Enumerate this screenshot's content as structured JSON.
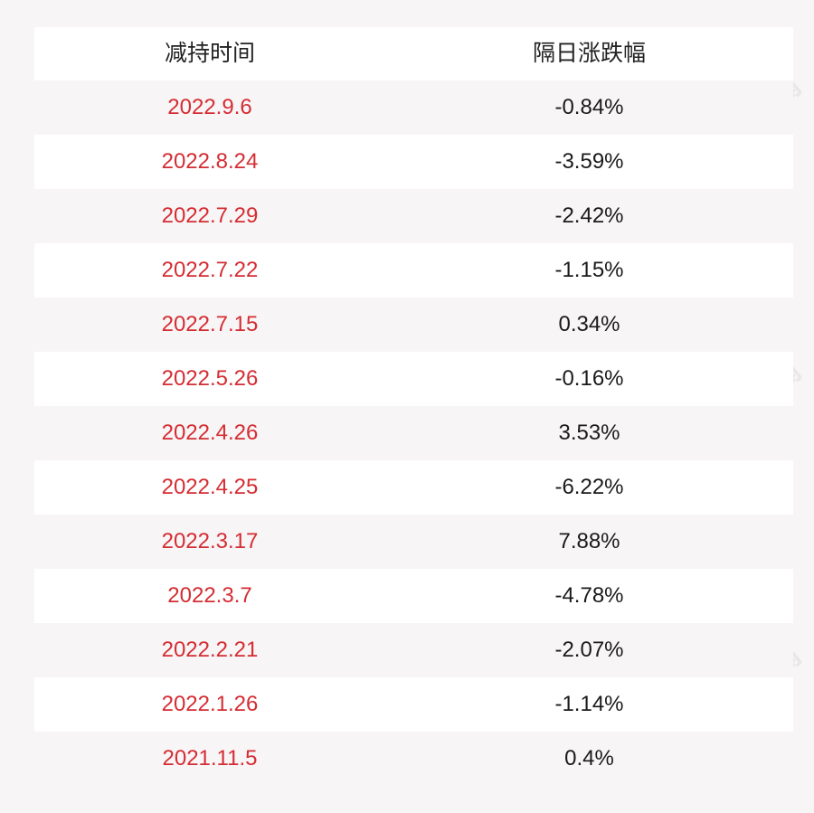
{
  "header": {
    "col_date": "减持时间",
    "col_change": "隔日涨跌幅"
  },
  "rows": [
    {
      "date": "2022.9.6",
      "change": "-0.84%"
    },
    {
      "date": "2022.8.24",
      "change": "-3.59%"
    },
    {
      "date": "2022.7.29",
      "change": "-2.42%"
    },
    {
      "date": "2022.7.22",
      "change": "-1.15%"
    },
    {
      "date": "2022.7.15",
      "change": "0.34%"
    },
    {
      "date": "2022.5.26",
      "change": "-0.16%"
    },
    {
      "date": "2022.4.26",
      "change": "3.53%"
    },
    {
      "date": "2022.4.25",
      "change": "-6.22%"
    },
    {
      "date": "2022.3.17",
      "change": "7.88%"
    },
    {
      "date": "2022.3.7",
      "change": "-4.78%"
    },
    {
      "date": "2022.2.21",
      "change": "-2.07%"
    },
    {
      "date": "2022.1.26",
      "change": "-1.14%"
    },
    {
      "date": "2021.11.5",
      "change": "0.4%"
    }
  ],
  "watermark": "每日经济新闻",
  "colors": {
    "date_text": "#d42d33",
    "background": "#f8f5f6"
  }
}
